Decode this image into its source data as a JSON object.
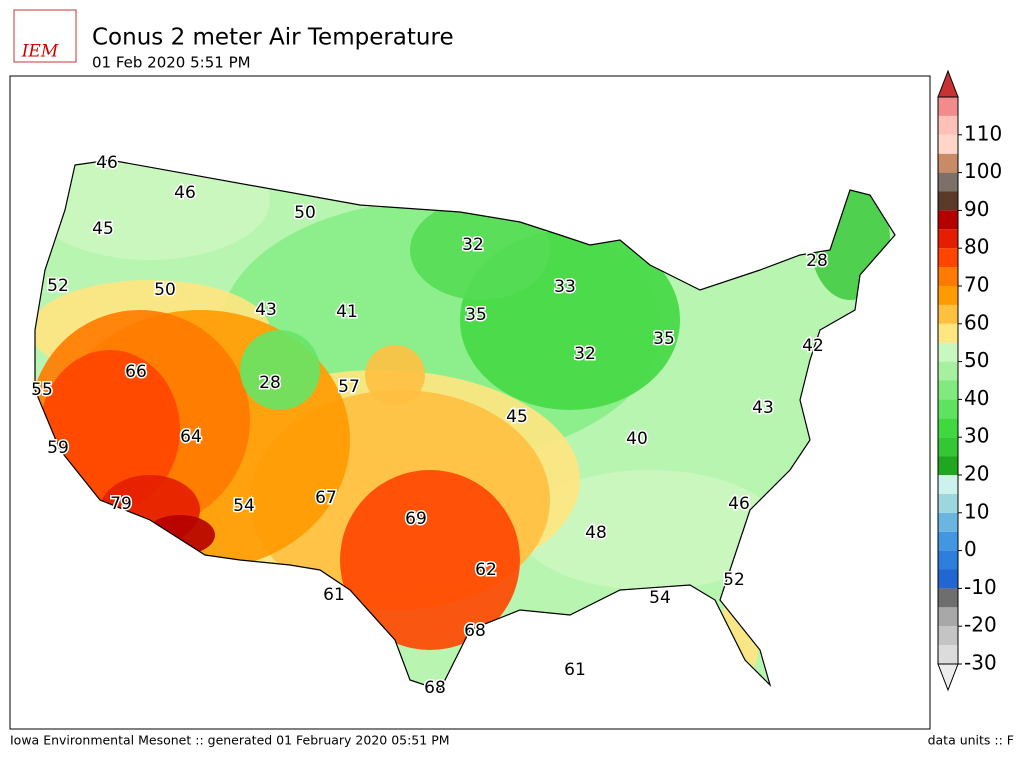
{
  "header": {
    "logo": "IEM",
    "title": "Conus 2 meter Air Temperature",
    "subtitle": "01 Feb 2020 5:51 PM"
  },
  "map": {
    "labels": [
      46,
      46,
      50,
      45,
      32,
      28,
      52,
      50,
      33,
      43,
      41,
      35,
      35,
      32,
      42,
      66,
      28,
      57,
      55,
      43,
      45,
      64,
      40,
      59,
      67,
      79,
      54,
      69,
      46,
      48,
      62,
      52,
      61,
      54,
      68,
      61,
      68
    ]
  },
  "colorbar": {
    "range": [
      -30,
      120
    ],
    "ticks": [
      -30,
      -20,
      -10,
      0,
      10,
      20,
      30,
      40,
      50,
      60,
      70,
      80,
      90,
      100,
      110
    ],
    "under": "#ececec",
    "over": "#c83232",
    "colors": [
      "#dcdcdc",
      "#c4c4c4",
      "#a8a8a8",
      "#6e6e6e",
      "#2166d1",
      "#2e7fdb",
      "#4297e0",
      "#6ab6e0",
      "#9dd6dc",
      "#ccf2ee",
      "#1fa81f",
      "#33c733",
      "#3fd83f",
      "#5ee35e",
      "#80ea80",
      "#a6f0a0",
      "#c8f8c0",
      "#ffe680",
      "#ffc040",
      "#ff9a00",
      "#ff7a00",
      "#ff4500",
      "#e61e00",
      "#b50000",
      "#5c3a2a",
      "#7d7068",
      "#c98a66",
      "#ffd6c8",
      "#ffc0b8",
      "#f28c8c"
    ]
  },
  "footer": {
    "left": "Iowa Environmental Mesonet :: generated 01 February 2020 05:51 PM",
    "right": "data units :: F"
  }
}
